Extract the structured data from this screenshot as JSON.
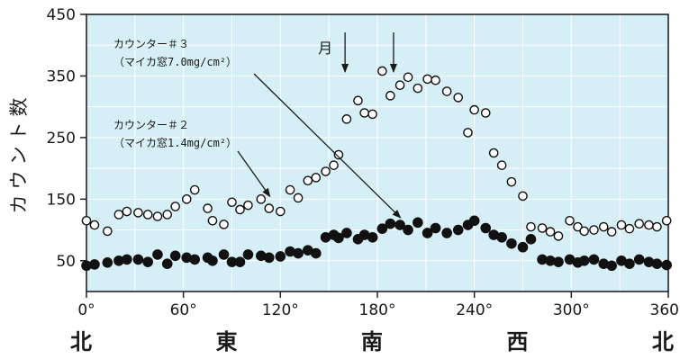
{
  "chart_data": {
    "type": "scatter",
    "ylabel": "カウント数",
    "xlim": [
      0,
      360
    ],
    "ylim": [
      0,
      450
    ],
    "x_ticks": [
      {
        "value": 0,
        "label": "0°"
      },
      {
        "value": 60,
        "label": "60°"
      },
      {
        "value": 120,
        "label": "120°"
      },
      {
        "value": 180,
        "label": "180°"
      },
      {
        "value": 240,
        "label": "240°"
      },
      {
        "value": 300,
        "label": "300°"
      },
      {
        "value": 360,
        "label": "360°"
      }
    ],
    "y_ticks": [
      {
        "value": 50,
        "label": "50"
      },
      {
        "value": 150,
        "label": "150"
      },
      {
        "value": 250,
        "label": "250"
      },
      {
        "value": 350,
        "label": "350"
      },
      {
        "value": 450,
        "label": "450"
      }
    ],
    "directions": [
      {
        "value": 0,
        "label": "北"
      },
      {
        "value": 90,
        "label": "東"
      },
      {
        "value": 180,
        "label": "南"
      },
      {
        "value": 270,
        "label": "西"
      },
      {
        "value": 360,
        "label": "北"
      }
    ],
    "grid": true,
    "plot_background": "#d6eef5",
    "series": [
      {
        "marker": "open",
        "x": [
          0,
          5,
          13,
          20,
          25,
          32,
          38,
          44,
          50,
          55,
          62,
          67,
          75,
          78,
          85,
          90,
          95,
          100,
          108,
          113,
          120,
          126,
          131,
          137,
          142,
          148,
          153,
          156,
          161,
          168,
          172,
          177,
          183,
          188,
          194,
          199,
          205,
          211,
          216,
          223,
          230,
          236,
          240,
          247,
          252,
          257,
          263,
          270,
          275,
          282,
          287,
          292,
          299,
          304,
          308,
          314,
          320,
          325,
          331,
          336,
          342,
          348,
          353,
          359
        ],
        "y": [
          115,
          108,
          98,
          125,
          130,
          128,
          125,
          122,
          125,
          138,
          150,
          165,
          135,
          115,
          109,
          145,
          133,
          140,
          150,
          135,
          130,
          165,
          152,
          180,
          185,
          195,
          205,
          222,
          280,
          310,
          290,
          288,
          358,
          318,
          335,
          348,
          330,
          345,
          343,
          325,
          315,
          258,
          295,
          290,
          225,
          205,
          178,
          155,
          105,
          103,
          97,
          90,
          115,
          105,
          98,
          100,
          105,
          97,
          108,
          102,
          110,
          108,
          105,
          115
        ]
      },
      {
        "marker": "filled",
        "x": [
          0,
          5,
          13,
          20,
          25,
          32,
          38,
          44,
          50,
          55,
          62,
          67,
          75,
          78,
          85,
          90,
          95,
          100,
          108,
          113,
          120,
          126,
          131,
          137,
          142,
          148,
          153,
          156,
          161,
          168,
          172,
          177,
          183,
          188,
          194,
          199,
          205,
          211,
          216,
          223,
          230,
          236,
          240,
          247,
          252,
          257,
          263,
          270,
          275,
          282,
          287,
          292,
          299,
          304,
          308,
          314,
          320,
          325,
          331,
          336,
          342,
          348,
          353,
          359
        ],
        "y": [
          42,
          44,
          47,
          50,
          52,
          52,
          48,
          60,
          45,
          58,
          55,
          52,
          55,
          50,
          60,
          48,
          48,
          60,
          58,
          55,
          57,
          65,
          62,
          67,
          62,
          88,
          92,
          87,
          95,
          85,
          92,
          88,
          102,
          110,
          108,
          100,
          112,
          95,
          103,
          95,
          100,
          108,
          115,
          103,
          92,
          88,
          78,
          72,
          85,
          52,
          50,
          48,
          52,
          47,
          50,
          52,
          45,
          42,
          50,
          45,
          52,
          48,
          45,
          43
        ]
      }
    ],
    "annotations": [
      {
        "id": "counter3",
        "line1": "カウンター＃３",
        "line2": "（マイカ窓7.0mg/cm²）",
        "target_x": 196,
        "target_y": 108
      },
      {
        "id": "counter2",
        "line1": "カウンター＃２",
        "line2": "（マイカ窓1.4mg/cm²）",
        "target_x": 118,
        "target_y": 163
      },
      {
        "id": "moon",
        "text": "月",
        "arrow_x": [
          160,
          190
        ]
      }
    ]
  }
}
